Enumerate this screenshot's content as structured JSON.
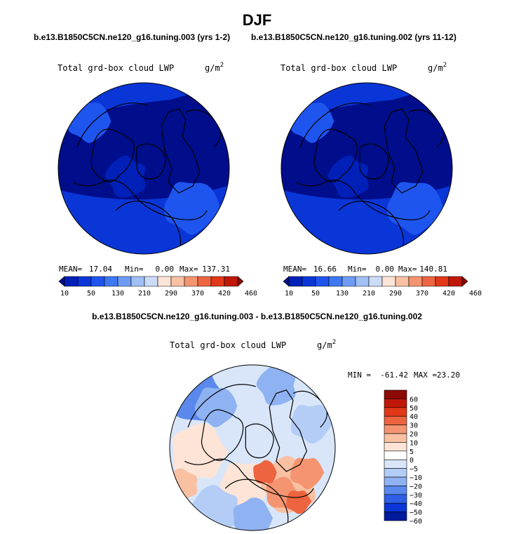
{
  "page_title": "DJF",
  "chart_data": [
    {
      "type": "heatmap",
      "projection": "north-polar-stereographic",
      "case_title": "b.e13.B1850C5CN.ne120_g16.tuning.003 (yrs 1-2)",
      "variable": "Total grd-box cloud LWP",
      "units": "g/m",
      "units_sup": "2",
      "stats": {
        "mean_label": "MEAN=",
        "mean": "17.04",
        "min_label": "Min=",
        "min": "0.00",
        "max_label": "Max=",
        "max": "137.31"
      },
      "colorbar_levels": [
        10,
        50,
        130,
        210,
        290,
        370,
        420,
        460
      ],
      "colorbar_labels": [
        "10",
        "50",
        "130",
        "210",
        "290",
        "370",
        "420",
        "460"
      ]
    },
    {
      "type": "heatmap",
      "projection": "north-polar-stereographic",
      "case_title": "b.e13.B1850C5CN.ne120_g16.tuning.002 (yrs 11-12)",
      "variable": "Total grd-box cloud LWP",
      "units": "g/m",
      "units_sup": "2",
      "stats": {
        "mean_label": "MEAN=",
        "mean": "16.66",
        "min_label": "Min=",
        "min": "0.00",
        "max_label": "Max=",
        "max": "140.81"
      },
      "colorbar_levels": [
        10,
        50,
        130,
        210,
        290,
        370,
        420,
        460
      ],
      "colorbar_labels": [
        "10",
        "50",
        "130",
        "210",
        "290",
        "370",
        "420",
        "460"
      ]
    },
    {
      "type": "heatmap",
      "projection": "north-polar-stereographic",
      "case_title": "b.e13.B1850C5CN.ne120_g16.tuning.003 - b.e13.B1850C5CN.ne120_g16.tuning.002",
      "variable": "Total grd-box cloud LWP",
      "units": "g/m",
      "units_sup": "2",
      "stats": {
        "min_label": "MIN =",
        "min": "-61.42",
        "max_label": "MAX =",
        "max": "23.20"
      },
      "colorbar_levels": [
        60,
        50,
        40,
        30,
        20,
        10,
        5,
        0,
        -5,
        -10,
        -20,
        -30,
        -40,
        -50,
        -60
      ],
      "colorbar_labels": [
        "60",
        "50",
        "40",
        "30",
        "20",
        "10",
        "5",
        "0",
        "−5",
        "−10",
        "−20",
        "−30",
        "−40",
        "−50",
        "−60"
      ]
    }
  ],
  "colors": {
    "abs_scale": [
      "#000e8c",
      "#0020b8",
      "#0a36d8",
      "#1e55ee",
      "#3e78f2",
      "#6e9cf4",
      "#a0c0f6",
      "#cadcf8",
      "#fde4d6",
      "#f9c0a2",
      "#f49470",
      "#ee6440",
      "#e23818",
      "#c01808",
      "#8c0a02"
    ],
    "diff_scale_top_to_bottom": [
      "#8c0a02",
      "#c01808",
      "#e23818",
      "#ee6440",
      "#f49470",
      "#f9c0a2",
      "#fde4d6",
      "#ffffff",
      "#d9e6fa",
      "#b4cdf6",
      "#8fb2f2",
      "#5a88ec",
      "#2e5fe6",
      "#0a36d8",
      "#001a9c"
    ]
  }
}
